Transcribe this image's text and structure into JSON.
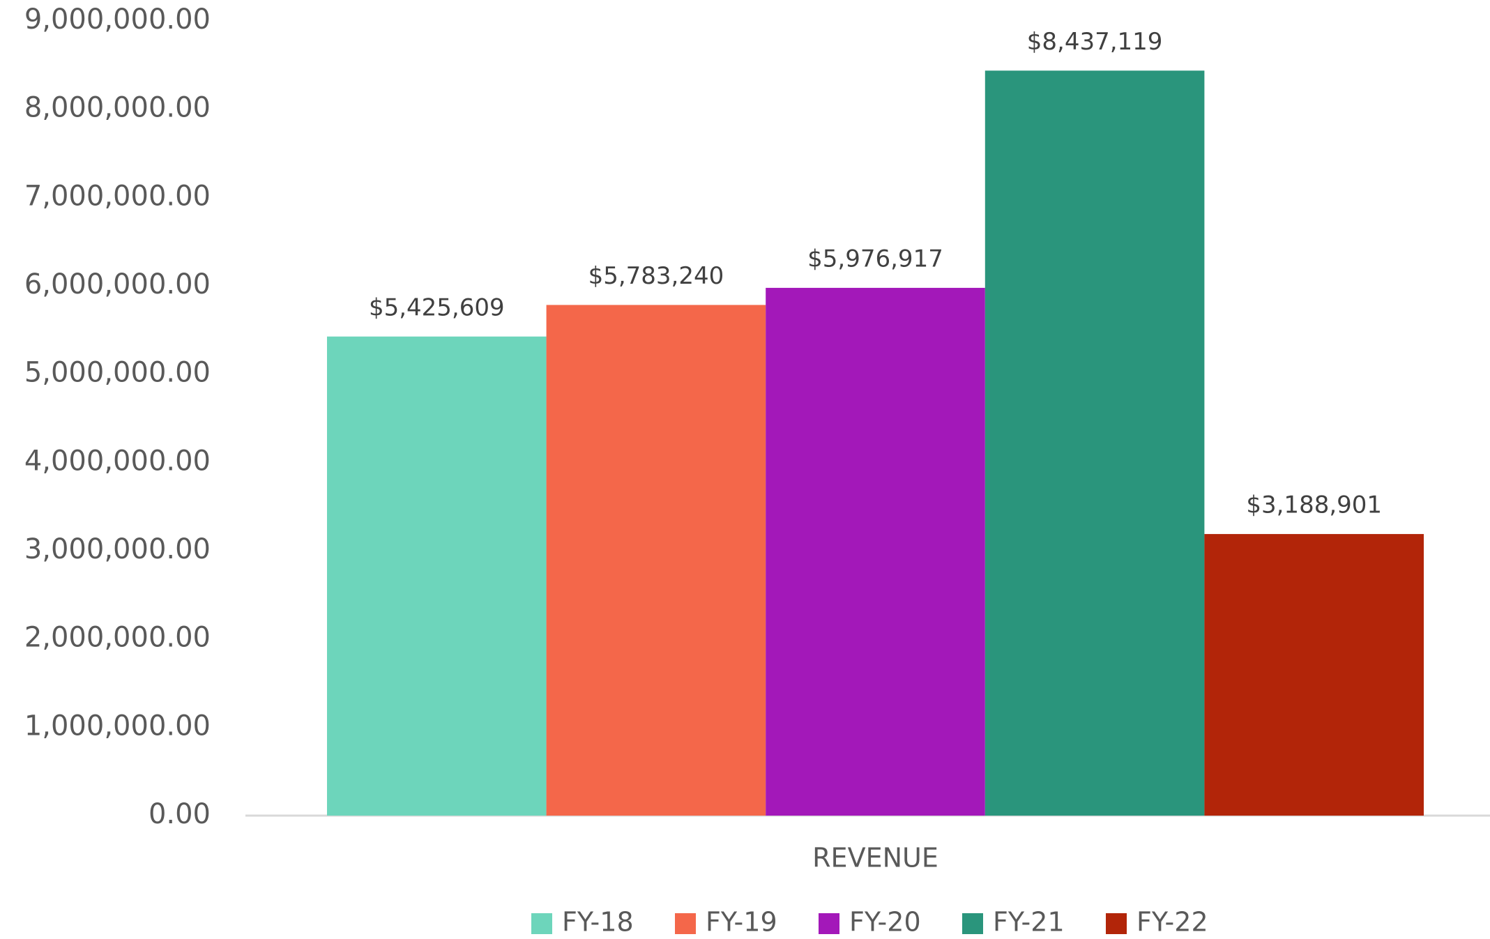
{
  "chart_data": {
    "type": "bar",
    "categories": [
      "REVENUE"
    ],
    "series": [
      {
        "name": "FY-18",
        "color": "#6dd5bb",
        "values": [
          5425609
        ],
        "value_labels": [
          "$5,425,609"
        ]
      },
      {
        "name": "FY-19",
        "color": "#f4674a",
        "values": [
          5783240
        ],
        "value_labels": [
          "$5,783,240"
        ]
      },
      {
        "name": "FY-20",
        "color": "#a318b9",
        "values": [
          5976917
        ],
        "value_labels": [
          "$5,976,917"
        ]
      },
      {
        "name": "FY-21",
        "color": "#2a957c",
        "values": [
          8437119
        ],
        "value_labels": [
          "$8,437,119"
        ]
      },
      {
        "name": "FY-22",
        "color": "#b22509",
        "values": [
          3188901
        ],
        "value_labels": [
          "$3,188,901"
        ]
      }
    ],
    "ylim": [
      0,
      9000000
    ],
    "yticks": [
      {
        "value": 0,
        "label": "0.00"
      },
      {
        "value": 1000000,
        "label": "1,000,000.00"
      },
      {
        "value": 2000000,
        "label": "2,000,000.00"
      },
      {
        "value": 3000000,
        "label": "3,000,000.00"
      },
      {
        "value": 4000000,
        "label": "4,000,000.00"
      },
      {
        "value": 5000000,
        "label": "5,000,000.00"
      },
      {
        "value": 6000000,
        "label": "6,000,000.00"
      },
      {
        "value": 7000000,
        "label": "7,000,000.00"
      },
      {
        "value": 8000000,
        "label": "8,000,000.00"
      },
      {
        "value": 9000000,
        "label": "9,000,000.00"
      }
    ],
    "grid": false,
    "legend": "bottom"
  }
}
